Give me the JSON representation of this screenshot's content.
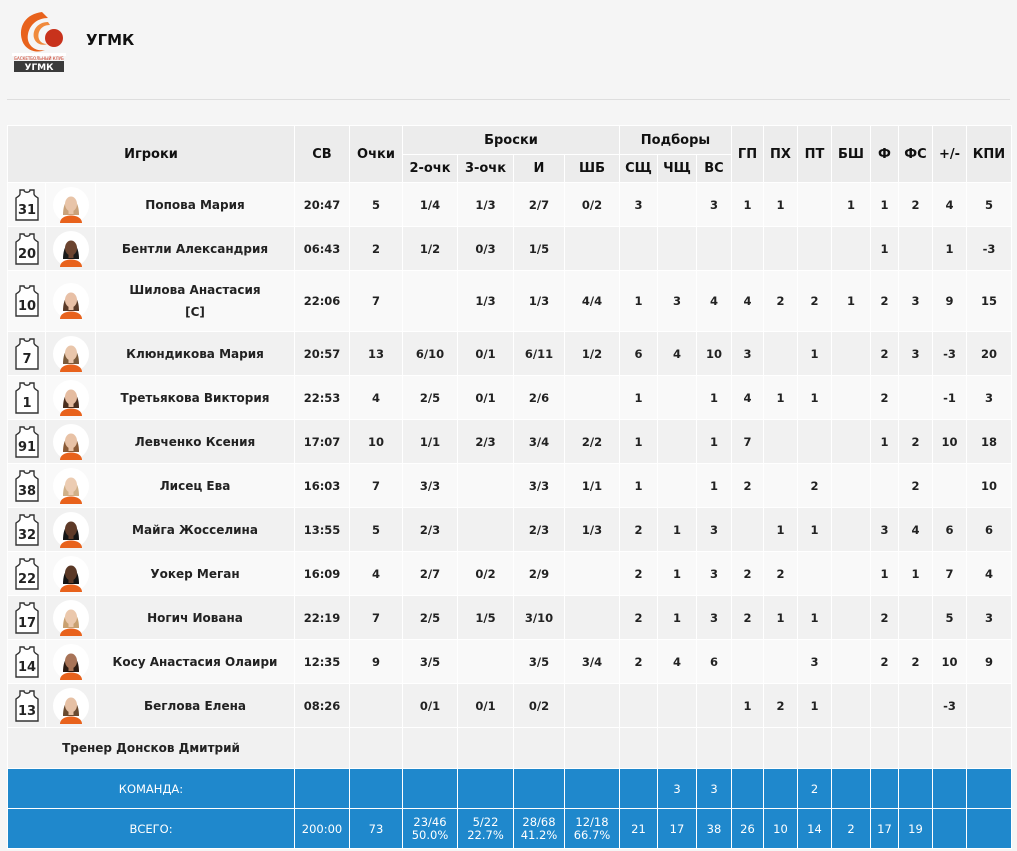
{
  "team": {
    "name": "УГМК",
    "logo_text": "БАСКЕТБОЛЬНЫЙ КЛУБ",
    "logo_abbr": "УГМК"
  },
  "headers": {
    "players": "Игроки",
    "min": "СВ",
    "pts": "Очки",
    "shots": "Броски",
    "two": "2-очк",
    "three": "3-очк",
    "fg": "И",
    "ft": "ШБ",
    "rebounds": "Подборы",
    "oreb": "СЩ",
    "dreb": "ЧЩ",
    "treb": "ВС",
    "ast": "ГП",
    "tov": "ПХ",
    "stl": "ПТ",
    "blk": "БШ",
    "pf": "Ф",
    "fd": "ФС",
    "pm": "+/-",
    "eff": "КПИ"
  },
  "players": [
    {
      "num": "31",
      "name": "Попова Мария",
      "min": "20:47",
      "pts": "5",
      "two": "1/4",
      "three": "1/3",
      "fg": "2/7",
      "ft": "0/2",
      "oreb": "3",
      "dreb": "",
      "treb": "3",
      "ast": "1",
      "tov": "1",
      "stl": "",
      "blk": "1",
      "pf": "1",
      "fd": "2",
      "pm": "4",
      "eff": "5",
      "skin": "#e8c4a8",
      "hair": "#c9a27a"
    },
    {
      "num": "20",
      "name": "Бентли Александрия",
      "min": "06:43",
      "pts": "2",
      "two": "1/2",
      "three": "0/3",
      "fg": "1/5",
      "ft": "",
      "oreb": "",
      "dreb": "",
      "treb": "",
      "ast": "",
      "tov": "",
      "stl": "",
      "blk": "",
      "pf": "1",
      "fd": "",
      "pm": "1",
      "eff": "-3",
      "skin": "#6b4430",
      "hair": "#1a1a1a"
    },
    {
      "num": "10",
      "name": "Шилова Анастасия",
      "captain": "[C]",
      "min": "22:06",
      "pts": "7",
      "two": "",
      "three": "1/3",
      "fg": "1/3",
      "ft": "4/4",
      "oreb": "1",
      "dreb": "3",
      "treb": "4",
      "ast": "4",
      "tov": "2",
      "stl": "2",
      "blk": "1",
      "pf": "2",
      "fd": "3",
      "pm": "9",
      "eff": "15",
      "skin": "#e8c0a6",
      "hair": "#5a3a28"
    },
    {
      "num": "7",
      "name": "Клюндикова Мария",
      "min": "20:57",
      "pts": "13",
      "two": "6/10",
      "three": "0/1",
      "fg": "6/11",
      "ft": "1/2",
      "oreb": "6",
      "dreb": "4",
      "treb": "10",
      "ast": "3",
      "tov": "",
      "stl": "1",
      "blk": "",
      "pf": "2",
      "fd": "3",
      "pm": "-3",
      "eff": "20",
      "skin": "#e9c6ab",
      "hair": "#7a5a3a"
    },
    {
      "num": "1",
      "name": "Третьякова Виктория",
      "min": "22:53",
      "pts": "4",
      "two": "2/5",
      "three": "0/1",
      "fg": "2/6",
      "ft": "",
      "oreb": "1",
      "dreb": "",
      "treb": "1",
      "ast": "4",
      "tov": "1",
      "stl": "1",
      "blk": "",
      "pf": "2",
      "fd": "",
      "pm": "-1",
      "eff": "3",
      "skin": "#e5bca0",
      "hair": "#4a2e1e"
    },
    {
      "num": "91",
      "name": "Левченко Ксения",
      "min": "17:07",
      "pts": "10",
      "two": "1/1",
      "three": "2/3",
      "fg": "3/4",
      "ft": "2/2",
      "oreb": "1",
      "dreb": "",
      "treb": "1",
      "ast": "7",
      "tov": "",
      "stl": "",
      "blk": "",
      "pf": "1",
      "fd": "2",
      "pm": "10",
      "eff": "18",
      "skin": "#e8c2a6",
      "hair": "#8a5a36"
    },
    {
      "num": "38",
      "name": "Лисец Ева",
      "min": "16:03",
      "pts": "7",
      "two": "3/3",
      "three": "",
      "fg": "3/3",
      "ft": "1/1",
      "oreb": "1",
      "dreb": "",
      "treb": "1",
      "ast": "2",
      "tov": "",
      "stl": "2",
      "blk": "",
      "pf": "",
      "fd": "2",
      "pm": "",
      "eff": "10",
      "skin": "#ecccb2",
      "hair": "#d0b088"
    },
    {
      "num": "32",
      "name": "Майга Жосселина",
      "min": "13:55",
      "pts": "5",
      "two": "2/3",
      "three": "",
      "fg": "2/3",
      "ft": "1/3",
      "oreb": "2",
      "dreb": "1",
      "treb": "3",
      "ast": "",
      "tov": "1",
      "stl": "1",
      "blk": "",
      "pf": "3",
      "fd": "4",
      "pm": "6",
      "eff": "6",
      "skin": "#5e3a28",
      "hair": "#151515"
    },
    {
      "num": "22",
      "name": "Уокер Меган",
      "min": "16:09",
      "pts": "4",
      "two": "2/7",
      "three": "0/2",
      "fg": "2/9",
      "ft": "",
      "oreb": "2",
      "dreb": "1",
      "treb": "3",
      "ast": "2",
      "tov": "2",
      "stl": "",
      "blk": "",
      "pf": "1",
      "fd": "1",
      "pm": "7",
      "eff": "4",
      "skin": "#5a3826",
      "hair": "#121212"
    },
    {
      "num": "17",
      "name": "Ногич Иована",
      "min": "22:19",
      "pts": "7",
      "two": "2/5",
      "three": "1/5",
      "fg": "3/10",
      "ft": "",
      "oreb": "2",
      "dreb": "1",
      "treb": "3",
      "ast": "2",
      "tov": "1",
      "stl": "1",
      "blk": "",
      "pf": "2",
      "fd": "",
      "pm": "5",
      "eff": "3",
      "skin": "#ebc8ac",
      "hair": "#c8a070"
    },
    {
      "num": "14",
      "name": "Косу Анастасия Олаири",
      "min": "12:35",
      "pts": "9",
      "two": "3/5",
      "three": "",
      "fg": "3/5",
      "ft": "3/4",
      "oreb": "2",
      "dreb": "4",
      "treb": "6",
      "ast": "",
      "tov": "",
      "stl": "3",
      "blk": "",
      "pf": "2",
      "fd": "2",
      "pm": "10",
      "eff": "9",
      "skin": "#a87458",
      "hair": "#2a1a12"
    },
    {
      "num": "13",
      "name": "Беглова Елена",
      "min": "08:26",
      "pts": "",
      "two": "0/1",
      "three": "0/1",
      "fg": "0/2",
      "ft": "",
      "oreb": "",
      "dreb": "",
      "treb": "",
      "ast": "1",
      "tov": "2",
      "stl": "1",
      "blk": "",
      "pf": "",
      "fd": "",
      "pm": "-3",
      "eff": "",
      "skin": "#e6c0a4",
      "hair": "#6a4a30"
    }
  ],
  "coach": "Тренер Донсков Дмитрий",
  "team_row": {
    "label": "КОМАНДА:",
    "min": "",
    "pts": "",
    "two": "",
    "three": "",
    "fg": "",
    "ft": "",
    "oreb": "",
    "dreb": "3",
    "treb": "3",
    "ast": "",
    "tov": "",
    "stl": "2",
    "blk": "",
    "pf": "",
    "fd": "",
    "pm": "",
    "eff": ""
  },
  "total_row": {
    "label": "ВСЕГО:",
    "min": "200:00",
    "pts": "73",
    "two": "23/46",
    "two_pct": "50.0%",
    "three": "5/22",
    "three_pct": "22.7%",
    "fg": "28/68",
    "fg_pct": "41.2%",
    "ft": "12/18",
    "ft_pct": "66.7%",
    "oreb": "21",
    "dreb": "17",
    "treb": "38",
    "ast": "26",
    "tov": "10",
    "stl": "14",
    "blk": "2",
    "pf": "17",
    "fd": "19",
    "pm": "",
    "eff": ""
  },
  "colors": {
    "accent": "#1f88cc",
    "logo_orange": "#e8621c",
    "logo_red": "#c8321c"
  }
}
